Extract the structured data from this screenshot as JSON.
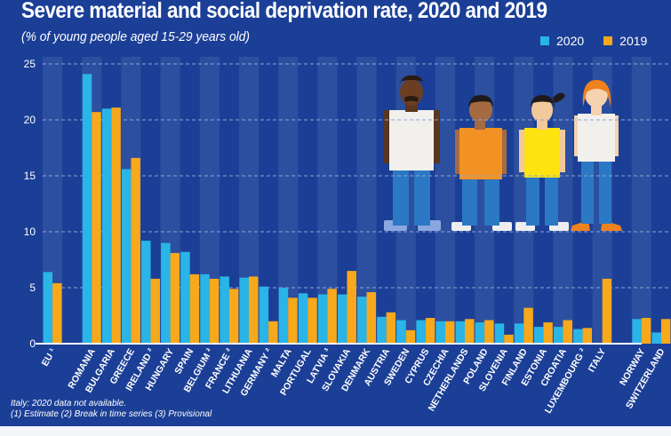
{
  "header": {
    "title": "Severe material and social deprivation rate, 2020 and 2019",
    "subtitle": "(% of young people aged 15-29 years old)"
  },
  "notes": {
    "line1": "Italy: 2020 data not available.",
    "line2": "(1) Estimate (2) Break in time series (3) Provisional"
  },
  "colors": {
    "background": "#1b3f96",
    "band_light": "#2c4f9f",
    "series_2020": "#29b5e8",
    "series_2019": "#f7a81b",
    "axis": "#ffffff",
    "grid": "#8fa6d6"
  },
  "chart_data": {
    "type": "bar",
    "title": "Severe material and social deprivation rate, 2020 and 2019",
    "subtitle": "(% of young people aged 15-29 years old)",
    "xlabel": "",
    "ylabel": "",
    "ylim": [
      0,
      25
    ],
    "yticks": [
      0,
      5,
      10,
      15,
      20,
      25
    ],
    "grid": true,
    "legend_position": "top-right",
    "categories": [
      "EU ¹",
      "",
      "ROMANIA",
      "BULGARIA",
      "GREECE",
      "IRELAND ²",
      "HUNGARY",
      "SPAIN",
      "BELGIUM ²",
      "FRANCE ²",
      "LITHUANIA",
      "GERMANY ²",
      "MALTA",
      "PORTUGAL",
      "LATVIA ³",
      "SLOVAKIA",
      "DENMARK",
      "AUSTRIA",
      "SWEDEN",
      "CYPRUS",
      "CZECHIA",
      "NETHERLANDS",
      "POLAND",
      "SLOVENIA",
      "FINLAND",
      "ESTONIA",
      "CROATIA",
      "LUXEMBOURG ²",
      "ITALY",
      "",
      "NORWAY",
      "SWITZERLAND"
    ],
    "series": [
      {
        "name": "2020",
        "values": [
          6.4,
          null,
          24.1,
          21.0,
          15.6,
          9.2,
          9.0,
          8.2,
          6.2,
          6.0,
          5.9,
          5.1,
          5.0,
          4.5,
          4.4,
          4.4,
          4.2,
          2.4,
          2.1,
          2.1,
          2.0,
          2.0,
          1.9,
          1.8,
          1.8,
          1.5,
          1.5,
          1.3,
          null,
          null,
          2.2,
          1.0
        ]
      },
      {
        "name": "2019",
        "values": [
          5.4,
          null,
          20.7,
          21.1,
          16.6,
          5.8,
          8.1,
          6.2,
          5.8,
          4.9,
          6.0,
          2.0,
          4.1,
          4.1,
          4.9,
          6.5,
          4.6,
          2.8,
          1.2,
          2.3,
          2.0,
          2.2,
          2.1,
          0.8,
          3.2,
          1.9,
          2.1,
          1.4,
          5.8,
          null,
          2.3,
          2.2
        ]
      }
    ]
  }
}
